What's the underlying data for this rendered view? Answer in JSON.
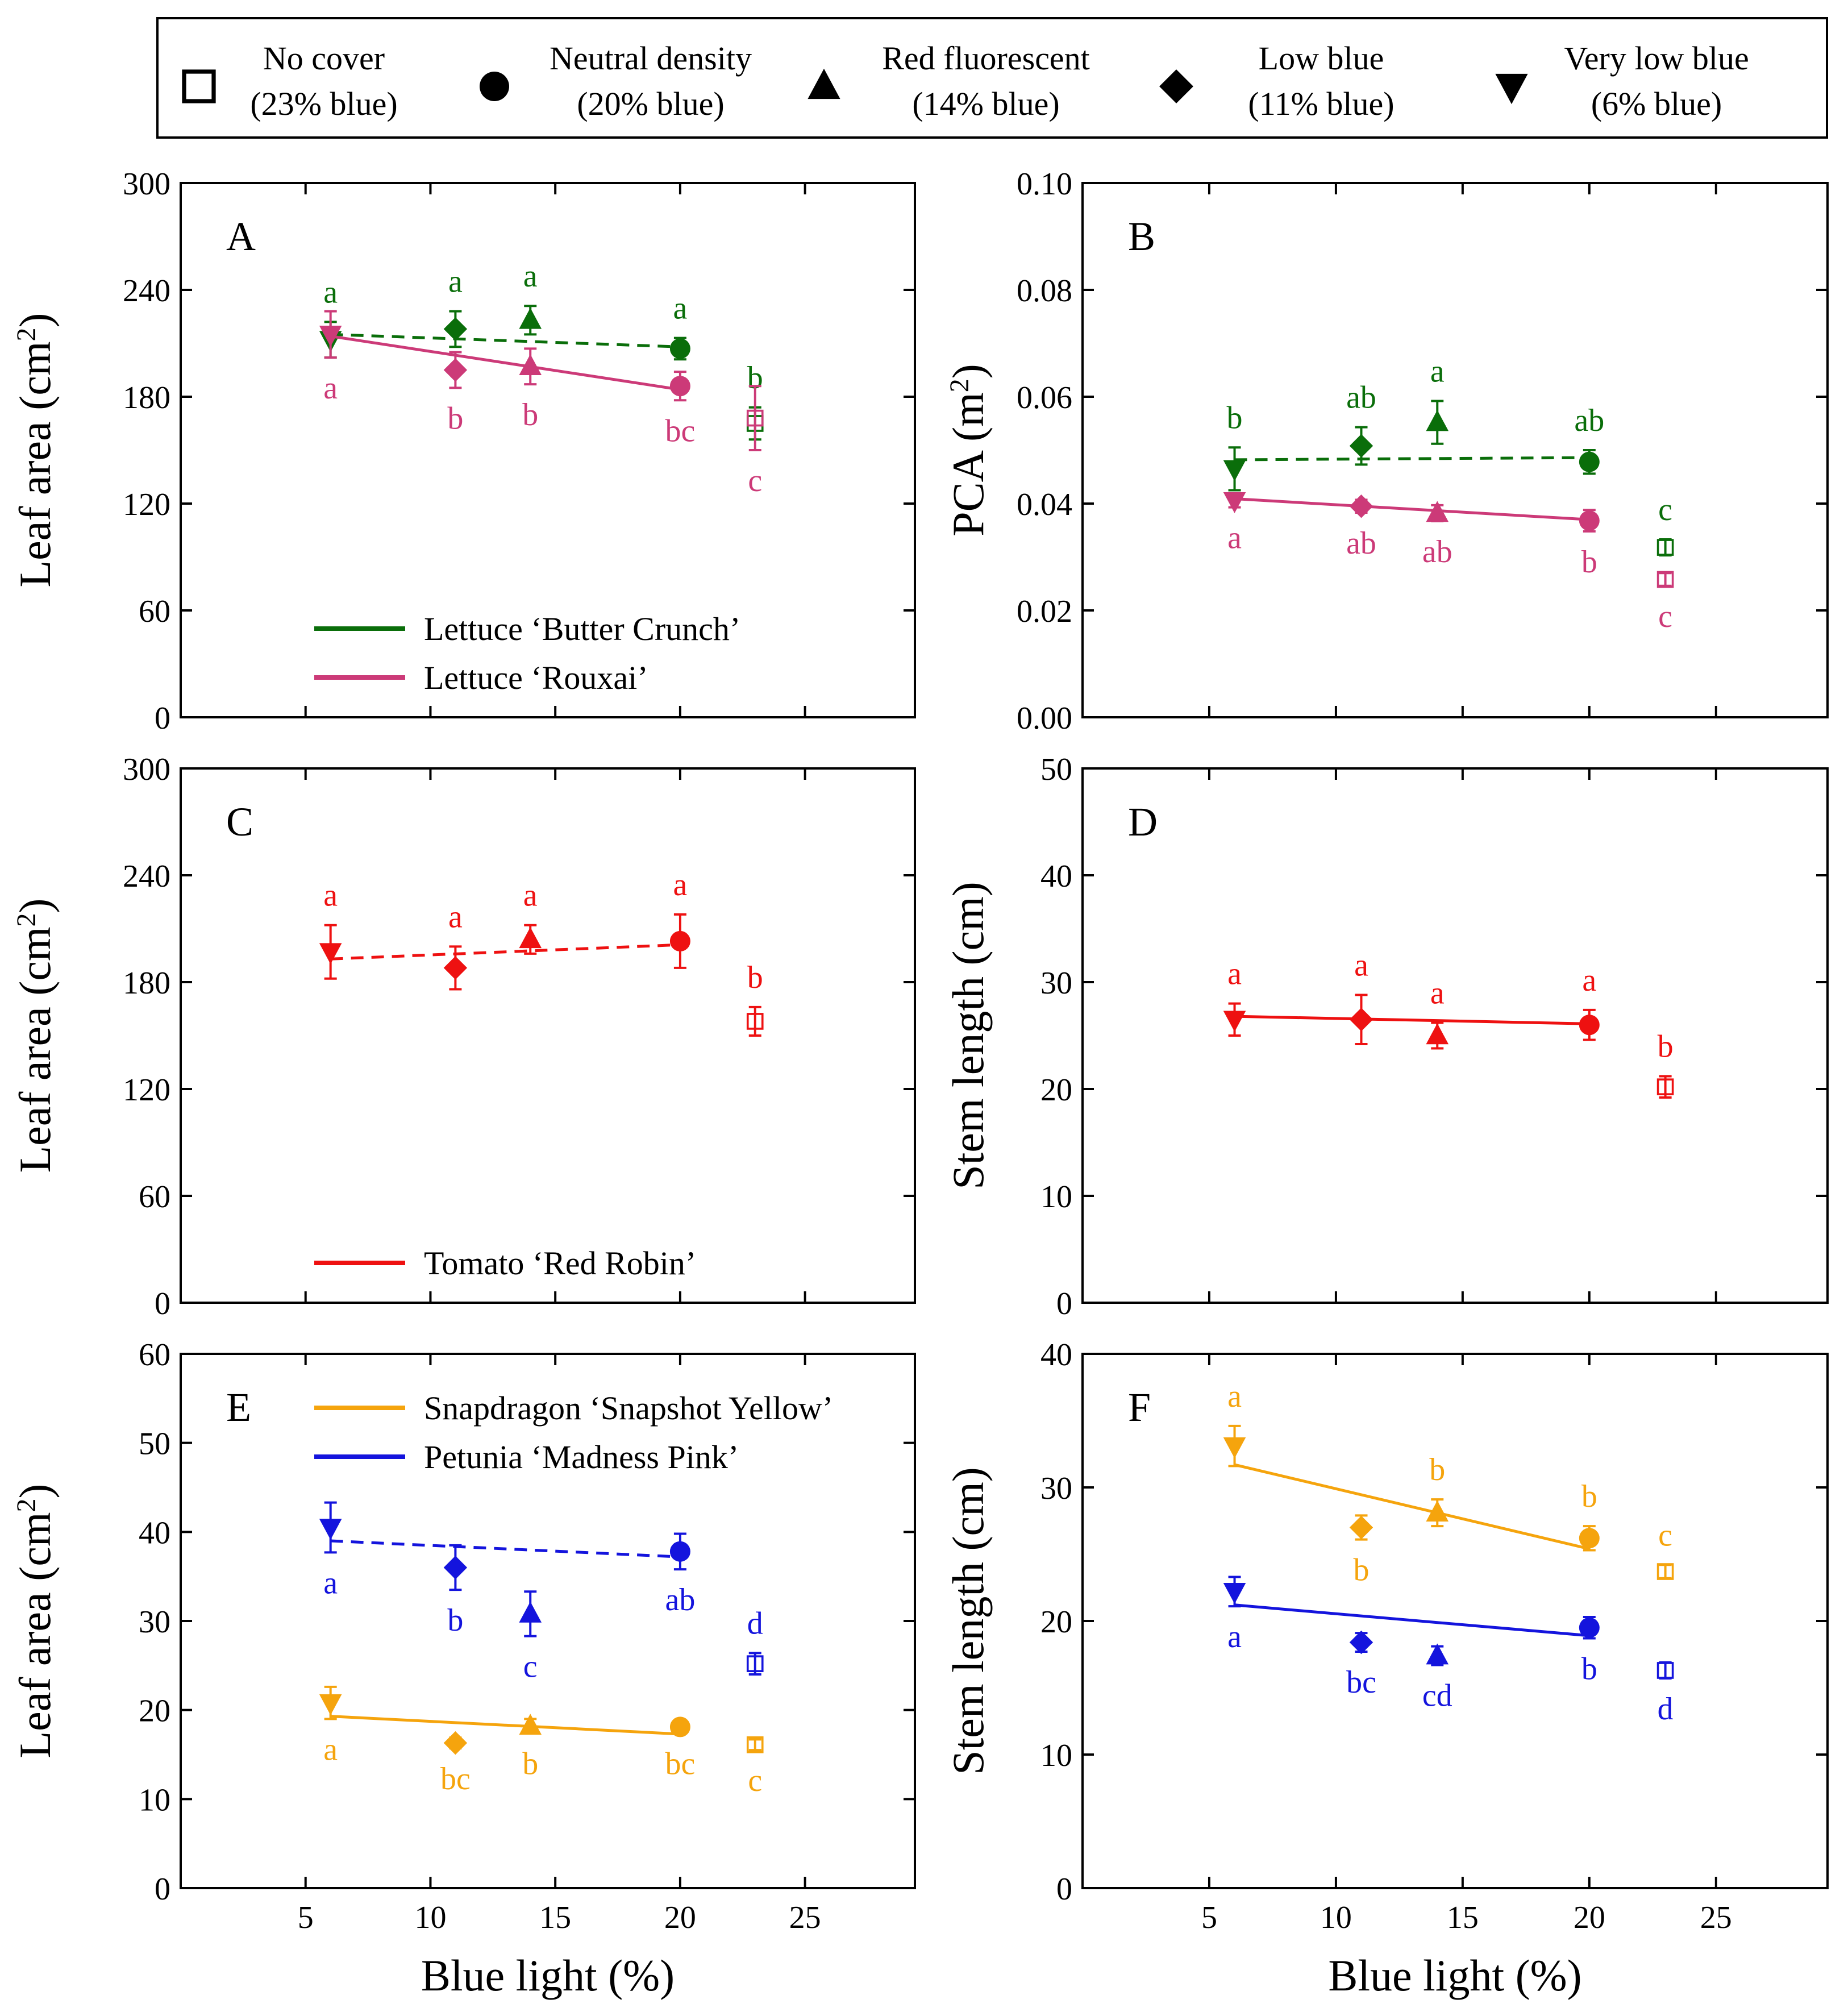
{
  "colors": {
    "green": "#0a6e0a",
    "pink": "#cc3a78",
    "red": "#ee1111",
    "orange": "#f5a40d",
    "blue": "#1414dd",
    "axis": "#000000"
  },
  "legend": {
    "items": [
      {
        "marker": "square-open",
        "line1": "No cover",
        "line2": "(23% blue)"
      },
      {
        "marker": "circle",
        "line1": "Neutral density",
        "line2": "(20% blue)"
      },
      {
        "marker": "triangle-up",
        "line1": "Red fluorescent",
        "line2": "(14% blue)"
      },
      {
        "marker": "diamond",
        "line1": "Low blue",
        "line2": "(11% blue)"
      },
      {
        "marker": "triangle-down",
        "line1": "Very low blue",
        "line2": "(6% blue)"
      }
    ]
  },
  "shared_xlabel": "Blue light (%)",
  "chart_data": [
    {
      "panel": "A",
      "type": "scatter",
      "ylabel": "Leaf area (cm²)",
      "ylabel_main": "Leaf area (cm",
      "ylabel_sup": "2",
      "ylabel_end": ")",
      "xlim": [
        0,
        29.4
      ],
      "ylim": [
        0,
        300
      ],
      "xticks": [
        5,
        10,
        15,
        20,
        25
      ],
      "yticks": [
        0,
        60,
        120,
        180,
        240,
        300
      ],
      "ytick_labels": [
        "0",
        "60",
        "120",
        "180",
        "240",
        "300"
      ],
      "show_xticklabels": false,
      "legend_position": "lower-left",
      "series": [
        {
          "name": "Lettuce ‘Butter Crunch’",
          "color": "green",
          "fit": "dashed",
          "fit_line": [
            [
              6,
              215
            ],
            [
              20,
              208
            ]
          ],
          "points": [
            {
              "x": 6,
              "y": 212,
              "err": 10,
              "marker": "triangle-down",
              "letter": "a",
              "letter_pos": "above"
            },
            {
              "x": 11,
              "y": 218,
              "err": 10,
              "marker": "diamond",
              "letter": "a",
              "letter_pos": "above"
            },
            {
              "x": 14,
              "y": 223,
              "err": 8,
              "marker": "triangle-up",
              "letter": "a",
              "letter_pos": "above"
            },
            {
              "x": 20,
              "y": 207,
              "err": 6,
              "marker": "circle",
              "letter": "a",
              "letter_pos": "above"
            },
            {
              "x": 23,
              "y": 165,
              "err": 9,
              "marker": "square-open",
              "letter": "b",
              "letter_pos": "above"
            }
          ]
        },
        {
          "name": "Lettuce ‘Rouxai’",
          "color": "pink",
          "fit": "solid",
          "fit_line": [
            [
              6,
              214
            ],
            [
              20,
              184
            ]
          ],
          "points": [
            {
              "x": 6,
              "y": 215,
              "err": 13,
              "marker": "triangle-down",
              "letter": "a",
              "letter_pos": "below"
            },
            {
              "x": 11,
              "y": 195,
              "err": 10,
              "marker": "diamond",
              "letter": "b",
              "letter_pos": "below"
            },
            {
              "x": 14,
              "y": 197,
              "err": 10,
              "marker": "triangle-up",
              "letter": "b",
              "letter_pos": "below"
            },
            {
              "x": 20,
              "y": 186,
              "err": 8,
              "marker": "circle",
              "letter": "bc",
              "letter_pos": "below"
            },
            {
              "x": 23,
              "y": 168,
              "err": 18,
              "marker": "square-open",
              "letter": "c",
              "letter_pos": "below"
            }
          ]
        }
      ]
    },
    {
      "panel": "B",
      "type": "scatter",
      "ylabel": "PCA (m²)",
      "ylabel_main": "PCA (m",
      "ylabel_sup": "2",
      "ylabel_end": ")",
      "xlim": [
        0,
        29.4
      ],
      "ylim": [
        0,
        0.1
      ],
      "xticks": [
        5,
        10,
        15,
        20,
        25
      ],
      "yticks": [
        0,
        0.02,
        0.04,
        0.06,
        0.08,
        0.1
      ],
      "ytick_labels": [
        "0.00",
        "0.02",
        "0.04",
        "0.06",
        "0.08",
        "0.10"
      ],
      "show_xticklabels": false,
      "legend_position": "none",
      "series": [
        {
          "name": "Lettuce ‘Butter Crunch’",
          "color": "green",
          "fit": "dashed",
          "fit_line": [
            [
              6,
              0.0482
            ],
            [
              20,
              0.0486
            ]
          ],
          "points": [
            {
              "x": 6,
              "y": 0.0465,
              "err": 0.004,
              "marker": "triangle-down",
              "letter": "b",
              "letter_pos": "above"
            },
            {
              "x": 11,
              "y": 0.0508,
              "err": 0.0035,
              "marker": "diamond",
              "letter": "ab",
              "letter_pos": "above"
            },
            {
              "x": 14,
              "y": 0.0552,
              "err": 0.004,
              "marker": "triangle-up",
              "letter": "a",
              "letter_pos": "above"
            },
            {
              "x": 20,
              "y": 0.0478,
              "err": 0.0022,
              "marker": "circle",
              "letter": "ab",
              "letter_pos": "above"
            },
            {
              "x": 23,
              "y": 0.0318,
              "err": 0.0015,
              "marker": "square-open",
              "letter": "c",
              "letter_pos": "above"
            }
          ]
        },
        {
          "name": "Lettuce ‘Rouxai’",
          "color": "pink",
          "fit": "solid",
          "fit_line": [
            [
              6,
              0.0409
            ],
            [
              20,
              0.037
            ]
          ],
          "points": [
            {
              "x": 6,
              "y": 0.0405,
              "err": 0.0012,
              "marker": "triangle-down",
              "letter": "a",
              "letter_pos": "below"
            },
            {
              "x": 11,
              "y": 0.0395,
              "err": 0.0012,
              "marker": "diamond",
              "letter": "ab",
              "letter_pos": "below"
            },
            {
              "x": 14,
              "y": 0.0382,
              "err": 0.0015,
              "marker": "triangle-up",
              "letter": "ab",
              "letter_pos": "below"
            },
            {
              "x": 20,
              "y": 0.0368,
              "err": 0.002,
              "marker": "circle",
              "letter": "b",
              "letter_pos": "below"
            },
            {
              "x": 23,
              "y": 0.0258,
              "err": 0.0012,
              "marker": "square-open",
              "letter": "c",
              "letter_pos": "below"
            }
          ]
        }
      ]
    },
    {
      "panel": "C",
      "type": "scatter",
      "ylabel": "Leaf area (cm²)",
      "ylabel_main": "Leaf area (cm",
      "ylabel_sup": "2",
      "ylabel_end": ")",
      "xlim": [
        0,
        29.4
      ],
      "ylim": [
        0,
        300
      ],
      "xticks": [
        5,
        10,
        15,
        20,
        25
      ],
      "yticks": [
        0,
        60,
        120,
        180,
        240,
        300
      ],
      "ytick_labels": [
        "0",
        "60",
        "120",
        "180",
        "240",
        "300"
      ],
      "show_xticklabels": false,
      "legend_position": "lower-left",
      "series": [
        {
          "name": "Tomato ‘Red Robin’",
          "color": "red",
          "fit": "dashed",
          "fit_line": [
            [
              6,
              193
            ],
            [
              20,
              201
            ]
          ],
          "points": [
            {
              "x": 6,
              "y": 197,
              "err": 15,
              "marker": "triangle-down",
              "letter": "a",
              "letter_pos": "above"
            },
            {
              "x": 11,
              "y": 188,
              "err": 12,
              "marker": "diamond",
              "letter": "a",
              "letter_pos": "above"
            },
            {
              "x": 14,
              "y": 204,
              "err": 8,
              "marker": "triangle-up",
              "letter": "a",
              "letter_pos": "above"
            },
            {
              "x": 20,
              "y": 203,
              "err": 15,
              "marker": "circle",
              "letter": "a",
              "letter_pos": "above"
            },
            {
              "x": 23,
              "y": 158,
              "err": 8,
              "marker": "square-open",
              "letter": "b",
              "letter_pos": "above"
            }
          ]
        }
      ]
    },
    {
      "panel": "D",
      "type": "scatter",
      "ylabel": "Stem length (cm)",
      "ylabel_main": "Stem length (cm)",
      "ylabel_sup": "",
      "ylabel_end": "",
      "xlim": [
        0,
        29.4
      ],
      "ylim": [
        0,
        50
      ],
      "xticks": [
        5,
        10,
        15,
        20,
        25
      ],
      "yticks": [
        0,
        10,
        20,
        30,
        40,
        50
      ],
      "ytick_labels": [
        "0",
        "10",
        "20",
        "30",
        "40",
        "50"
      ],
      "show_xticklabels": false,
      "legend_position": "none",
      "series": [
        {
          "name": "Tomato ‘Red Robin’",
          "color": "red",
          "fit": "solid",
          "fit_line": [
            [
              6,
              26.8
            ],
            [
              20,
              26.1
            ]
          ],
          "points": [
            {
              "x": 6,
              "y": 26.5,
              "err": 1.5,
              "marker": "triangle-down",
              "letter": "a",
              "letter_pos": "above"
            },
            {
              "x": 11,
              "y": 26.5,
              "err": 2.3,
              "marker": "diamond",
              "letter": "a",
              "letter_pos": "above"
            },
            {
              "x": 14,
              "y": 25,
              "err": 1.2,
              "marker": "triangle-up",
              "letter": "a",
              "letter_pos": "above"
            },
            {
              "x": 20,
              "y": 26,
              "err": 1.4,
              "marker": "circle",
              "letter": "a",
              "letter_pos": "above"
            },
            {
              "x": 23,
              "y": 20.2,
              "err": 1,
              "marker": "square-open",
              "letter": "b",
              "letter_pos": "above"
            }
          ]
        }
      ]
    },
    {
      "panel": "E",
      "type": "scatter",
      "ylabel": "Leaf area (cm²)",
      "ylabel_main": "Leaf area (cm",
      "ylabel_sup": "2",
      "ylabel_end": ")",
      "xlim": [
        0,
        29.4
      ],
      "ylim": [
        0,
        60
      ],
      "xticks": [
        5,
        10,
        15,
        20,
        25
      ],
      "yticks": [
        0,
        10,
        20,
        30,
        40,
        50,
        60
      ],
      "ytick_labels": [
        "0",
        "10",
        "20",
        "30",
        "40",
        "50",
        "60"
      ],
      "show_xticklabels": true,
      "legend_position": "upper-left",
      "series": [
        {
          "name": "Snapdragon ‘Snapshot Yellow’",
          "color": "orange",
          "fit": "solid",
          "fit_line": [
            [
              6,
              19.3
            ],
            [
              20,
              17.3
            ]
          ],
          "points": [
            {
              "x": 6,
              "y": 20.8,
              "err": 1.8,
              "marker": "triangle-down",
              "letter": "a",
              "letter_pos": "below"
            },
            {
              "x": 11,
              "y": 16.3,
              "err": 0.6,
              "marker": "diamond",
              "letter": "bc",
              "letter_pos": "below"
            },
            {
              "x": 14,
              "y": 18.2,
              "err": 0.8,
              "marker": "triangle-up",
              "letter": "b",
              "letter_pos": "below"
            },
            {
              "x": 20,
              "y": 18.1,
              "err": 0.7,
              "marker": "circle",
              "letter": "bc",
              "letter_pos": "below"
            },
            {
              "x": 23,
              "y": 16.1,
              "err": 0.6,
              "marker": "square-open",
              "letter": "c",
              "letter_pos": "below"
            }
          ]
        },
        {
          "name": "Petunia ‘Madness Pink’",
          "color": "blue",
          "fit": "dashed",
          "fit_line": [
            [
              6,
              39
            ],
            [
              20,
              37.2
            ]
          ],
          "points": [
            {
              "x": 6,
              "y": 40.5,
              "err": 2.8,
              "marker": "triangle-down",
              "letter": "a",
              "letter_pos": "below"
            },
            {
              "x": 11,
              "y": 36,
              "err": 2.5,
              "marker": "diamond",
              "letter": "b",
              "letter_pos": "below"
            },
            {
              "x": 14,
              "y": 30.8,
              "err": 2.5,
              "marker": "triangle-up",
              "letter": "c",
              "letter_pos": "below"
            },
            {
              "x": 20,
              "y": 37.8,
              "err": 2,
              "marker": "circle",
              "letter": "ab",
              "letter_pos": "below"
            },
            {
              "x": 23,
              "y": 25.2,
              "err": 1.2,
              "marker": "square-open",
              "letter": "d",
              "letter_pos": "above"
            }
          ]
        }
      ]
    },
    {
      "panel": "F",
      "type": "scatter",
      "ylabel": "Stem length (cm)",
      "ylabel_main": "Stem length (cm)",
      "ylabel_sup": "",
      "ylabel_end": "",
      "xlim": [
        0,
        29.4
      ],
      "ylim": [
        0,
        40
      ],
      "xticks": [
        5,
        10,
        15,
        20,
        25
      ],
      "yticks": [
        0,
        10,
        20,
        30,
        40
      ],
      "ytick_labels": [
        "0",
        "10",
        "20",
        "30",
        "40"
      ],
      "show_xticklabels": true,
      "legend_position": "none",
      "series": [
        {
          "name": "Snapdragon ‘Snapshot Yellow’",
          "color": "orange",
          "fit": "solid",
          "fit_line": [
            [
              6,
              31.7
            ],
            [
              20,
              25.4
            ]
          ],
          "points": [
            {
              "x": 6,
              "y": 33.1,
              "err": 1.5,
              "marker": "triangle-down",
              "letter": "a",
              "letter_pos": "above"
            },
            {
              "x": 11,
              "y": 27,
              "err": 0.9,
              "marker": "diamond",
              "letter": "b",
              "letter_pos": "below"
            },
            {
              "x": 14,
              "y": 28.1,
              "err": 1,
              "marker": "triangle-up",
              "letter": "b",
              "letter_pos": "above"
            },
            {
              "x": 20,
              "y": 26.2,
              "err": 0.9,
              "marker": "circle",
              "letter": "b",
              "letter_pos": "above"
            },
            {
              "x": 23,
              "y": 23.7,
              "err": 0.5,
              "marker": "square-open",
              "letter": "c",
              "letter_pos": "above"
            }
          ]
        },
        {
          "name": "Petunia ‘Madness Pink’",
          "color": "blue",
          "fit": "solid",
          "fit_line": [
            [
              6,
              21.2
            ],
            [
              20,
              18.9
            ]
          ],
          "points": [
            {
              "x": 6,
              "y": 22.2,
              "err": 1.1,
              "marker": "triangle-down",
              "letter": "a",
              "letter_pos": "below"
            },
            {
              "x": 11,
              "y": 18.4,
              "err": 0.7,
              "marker": "diamond",
              "letter": "bc",
              "letter_pos": "below"
            },
            {
              "x": 14,
              "y": 17.4,
              "err": 0.7,
              "marker": "triangle-up",
              "letter": "cd",
              "letter_pos": "below"
            },
            {
              "x": 20,
              "y": 19.5,
              "err": 0.8,
              "marker": "circle",
              "letter": "b",
              "letter_pos": "below"
            },
            {
              "x": 23,
              "y": 16.3,
              "err": 0.6,
              "marker": "square-open",
              "letter": "d",
              "letter_pos": "below"
            }
          ]
        }
      ]
    }
  ]
}
